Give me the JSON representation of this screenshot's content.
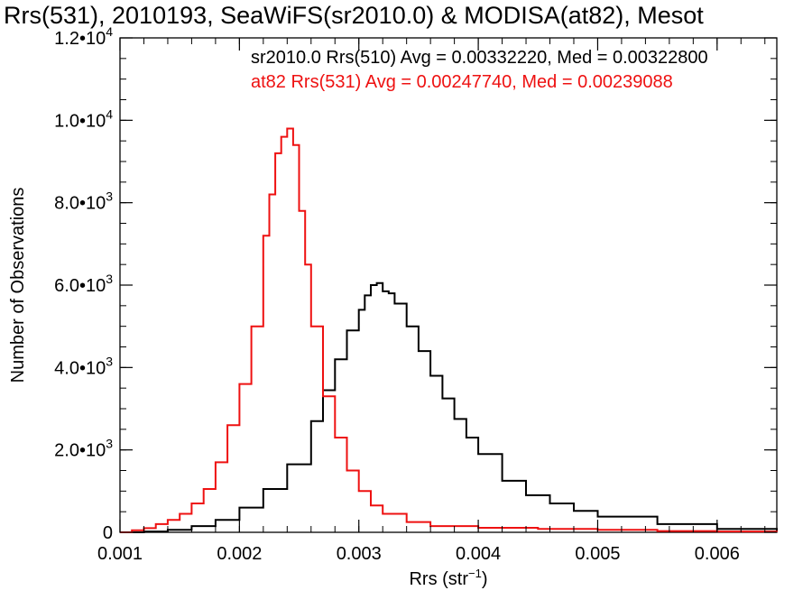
{
  "chart_data": {
    "type": "line",
    "title": "Rrs(531), 2010193, SeaWiFS(sr2010.0) & MODISA(at82), Mesot",
    "xlabel": "Rrs (str",
    "xlabel_sup": "−1",
    "xlabel_close": ")",
    "ylabel": "Number of Observations",
    "xlim": [
      0.001,
      0.0065
    ],
    "ylim": [
      0,
      12000
    ],
    "x_ticks": [
      0.001,
      0.002,
      0.003,
      0.004,
      0.005,
      0.006
    ],
    "x_tick_labels": [
      "0.001",
      "0.002",
      "0.003",
      "0.004",
      "0.005",
      "0.006"
    ],
    "y_ticks": [
      {
        "value": 0,
        "mantissa": "0",
        "exp": ""
      },
      {
        "value": 2000,
        "mantissa": "2.0•10",
        "exp": "3"
      },
      {
        "value": 4000,
        "mantissa": "4.0•10",
        "exp": "3"
      },
      {
        "value": 6000,
        "mantissa": "6.0•10",
        "exp": "3"
      },
      {
        "value": 8000,
        "mantissa": "8.0•10",
        "exp": "3"
      },
      {
        "value": 10000,
        "mantissa": "1.0•10",
        "exp": "4"
      },
      {
        "value": 12000,
        "mantissa": "1.2•10",
        "exp": "4"
      }
    ],
    "legend": [
      {
        "text": "sr2010.0 Rrs(510) Avg = 0.00332220, Med = 0.00322800",
        "color": "#000000"
      },
      {
        "text": "at82 Rrs(531) Avg = 0.00247740, Med = 0.00239088",
        "color": "#ee1111"
      }
    ],
    "series": [
      {
        "color": "#000000",
        "step": true,
        "x": [
          0.001,
          0.0012,
          0.0014,
          0.0016,
          0.0018,
          0.002,
          0.0022,
          0.0024,
          0.0026,
          0.0027,
          0.0028,
          0.0029,
          0.003,
          0.00305,
          0.0031,
          0.00315,
          0.0032,
          0.00325,
          0.0033,
          0.0034,
          0.0035,
          0.0036,
          0.0037,
          0.0038,
          0.0039,
          0.004,
          0.0042,
          0.0044,
          0.0046,
          0.0048,
          0.005,
          0.0055,
          0.006,
          0.0065
        ],
        "y": [
          0,
          20,
          60,
          150,
          300,
          600,
          1050,
          1650,
          2700,
          3450,
          4200,
          4900,
          5400,
          5750,
          6000,
          6050,
          5850,
          5800,
          5550,
          5000,
          4400,
          3800,
          3250,
          2750,
          2300,
          1900,
          1250,
          900,
          700,
          520,
          380,
          200,
          80,
          30
        ]
      },
      {
        "color": "#ee1111",
        "step": true,
        "x": [
          0.001,
          0.0011,
          0.0012,
          0.0013,
          0.0014,
          0.0015,
          0.0016,
          0.0017,
          0.0018,
          0.0019,
          0.002,
          0.0021,
          0.0022,
          0.00225,
          0.0023,
          0.00235,
          0.0024,
          0.00245,
          0.0025,
          0.00255,
          0.0026,
          0.0027,
          0.0028,
          0.0029,
          0.003,
          0.0031,
          0.0032,
          0.0034,
          0.0036,
          0.004,
          0.0045,
          0.005,
          0.0055,
          0.006,
          0.0065
        ],
        "y": [
          0,
          50,
          100,
          200,
          300,
          450,
          700,
          1050,
          1700,
          2600,
          3600,
          5000,
          7200,
          8200,
          9200,
          9600,
          9800,
          9400,
          7800,
          6500,
          5000,
          3300,
          2300,
          1500,
          1000,
          650,
          450,
          250,
          150,
          110,
          80,
          60,
          30,
          20,
          10
        ]
      }
    ]
  }
}
